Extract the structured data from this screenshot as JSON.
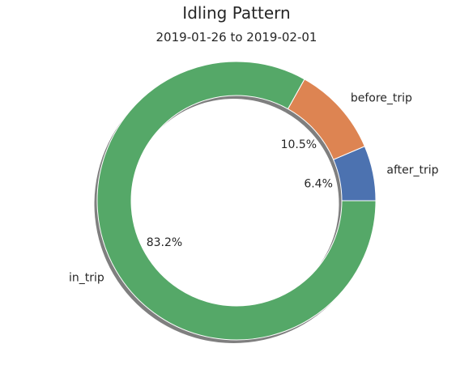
{
  "chart_data": {
    "type": "pie",
    "variant": "donut",
    "title": "Idling Pattern",
    "subtitle": "2019-01-26 to 2019-02-01",
    "categories": [
      "after_trip",
      "before_trip",
      "in_trip"
    ],
    "values": [
      6.4,
      10.5,
      83.2
    ],
    "percent_labels": [
      "6.4%",
      "10.5%",
      "83.2%"
    ],
    "colors": [
      "#4C72B0",
      "#DD8452",
      "#55A868"
    ],
    "start_angle_deg": 0,
    "direction": "counterclockwise",
    "shadow": true,
    "legend": "none"
  }
}
